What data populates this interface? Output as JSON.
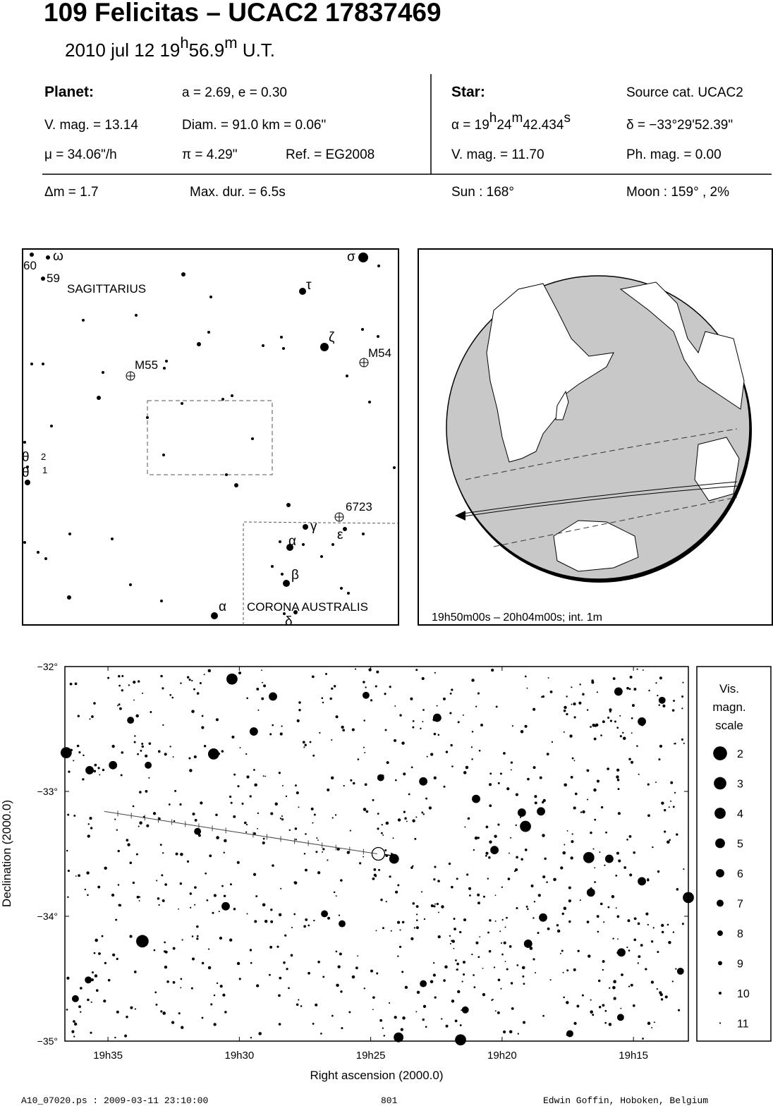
{
  "header": {
    "title": "109 Felicitas  –  UCAC2 17837469",
    "date": [
      "2010 jul 12  19",
      "h",
      "56.9",
      "m",
      " U.T."
    ]
  },
  "planet": {
    "heading": "Planet:",
    "orbit": "a = 2.69, e = 0.30",
    "vmag": "V. mag. = 13.14",
    "diam": "Diam. = 91.0 km = 0.06\"",
    "motion": "μ =  34.06\"/h",
    "parallax": "π =  4.29\"",
    "ref": "Ref. = EG2008"
  },
  "star": {
    "heading": "Star:",
    "source": "Source cat.  UCAC2",
    "ra": [
      "α = 19",
      "h",
      "24",
      "m",
      "42.434",
      "s"
    ],
    "dec": "δ = −33°29'52.39\"",
    "vmag": "V. mag. = 11.70",
    "phmag": "Ph. mag. =  0.00"
  },
  "event": {
    "dmag": "Δm = 1.7",
    "maxdur": "Max. dur. = 6.5s",
    "sun": "Sun : 168°",
    "moon": "Moon : 159° ,  2%"
  },
  "finder": {
    "labels": [
      "60",
      "ω",
      "59",
      "SAGITTARIUS",
      "σ",
      "τ",
      "ζ",
      "M55",
      "M54",
      "θ",
      "2",
      "θ",
      "1",
      "6723",
      "γ",
      "α",
      "ε",
      "β",
      "α",
      "CORONA AUSTRALIS",
      "δ"
    ]
  },
  "globe": {
    "caption": "19h50m00s – 20h04m00s; int.  1m"
  },
  "chart_data": {
    "type": "scatter",
    "xlabel": "Right ascension (2000.0)",
    "ylabel": "Declination (2000.0)",
    "xlim": [
      36.64,
      12.91
    ],
    "ylim": [
      -35,
      -32
    ],
    "xticks": [
      {
        "value": 35,
        "label": "19h35"
      },
      {
        "value": 30,
        "label": "19h30"
      },
      {
        "value": 25,
        "label": "19h25"
      },
      {
        "value": 20,
        "label": "19h20"
      },
      {
        "value": 15,
        "label": "19h15"
      }
    ],
    "yticks": [
      {
        "value": -32,
        "label": "−32°"
      },
      {
        "value": -33,
        "label": "−33°"
      },
      {
        "value": -34,
        "label": "−34°"
      },
      {
        "value": -35,
        "label": "−35°"
      }
    ],
    "color": "#000000",
    "stars": {
      "x": [
        30.28,
        36.59,
        30.98,
        33.69,
        19.11,
        16.7,
        12.91,
        23.94,
        21.58,
        24.11,
        35.7,
        34.81,
        29.45,
        28.72,
        23.0,
        22.47,
        20.99,
        19.25,
        18.52,
        15.92,
        16.62,
        19.01,
        18.44,
        15.46,
        14.68,
        15.57,
        30.52,
        20.29,
        14.68,
        35.75,
        36.24,
        34.14,
        13.91,
        26.76,
        26.09,
        15.49,
        23.0,
        21.4,
        24.62,
        33.47,
        31.59,
        25.18,
        17.42,
        13.21
      ],
      "y": [
        -32.1,
        -32.69,
        -32.7,
        -34.2,
        -33.28,
        -33.53,
        -33.85,
        -34.97,
        -34.99,
        -33.54,
        -32.83,
        -32.79,
        -32.52,
        -32.24,
        -32.92,
        -32.41,
        -33.06,
        -33.17,
        -33.16,
        -33.54,
        -33.81,
        -34.22,
        -34.01,
        -34.29,
        -32.44,
        -32.2,
        -33.92,
        -33.47,
        -33.72,
        -34.51,
        -34.66,
        -32.43,
        -32.27,
        -33.98,
        -34.06,
        -34.81,
        -34.54,
        -34.75,
        -32.89,
        -32.79,
        -33.32,
        -32.23,
        -34.94,
        -34.44
      ],
      "mag": [
        4,
        4,
        4,
        3,
        4,
        4,
        4,
        5,
        4,
        5,
        6,
        6,
        6,
        6,
        6,
        6,
        6,
        6,
        6,
        6,
        6,
        6,
        6,
        6,
        6,
        6,
        6,
        6,
        6,
        7,
        7,
        7,
        7,
        7,
        7,
        7,
        7,
        7,
        7,
        7,
        7,
        7,
        7,
        7
      ]
    },
    "path": {
      "x": [
        35.14,
        30.0,
        24.75
      ],
      "y": [
        -33.16,
        -33.33,
        -33.5
      ]
    },
    "target": {
      "x": 24.71,
      "y": -33.5
    },
    "legend": {
      "title": [
        "Vis.",
        "magn.",
        "scale"
      ],
      "mags": [
        2,
        3,
        4,
        5,
        6,
        7,
        8,
        9,
        10,
        11
      ]
    }
  },
  "footer": {
    "file": "A10_07020.ps : 2009-03-11 23:10:00",
    "page": "801",
    "author": "Edwin Goffin, Hoboken, Belgium"
  }
}
